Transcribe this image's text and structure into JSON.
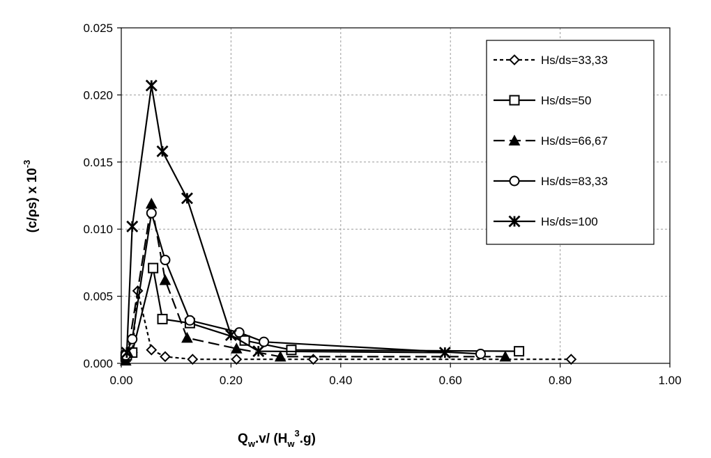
{
  "chart_data": {
    "type": "line",
    "title": "",
    "xlabel": {
      "main": "Q",
      "sub1": "w",
      "mid": ".v/ (H",
      "sub2": "w",
      "sup": "3",
      "tail": ".g)"
    },
    "ylabel": {
      "main": "(c/ρs) x 10",
      "sup": "-3"
    },
    "xlim": [
      0,
      1.0
    ],
    "ylim": [
      0,
      0.025
    ],
    "xticks": [
      0,
      0.2,
      0.4,
      0.6,
      0.8,
      1.0
    ],
    "xtick_labels": [
      "0.00",
      "0.20",
      "0.40",
      "0.60",
      "0.80",
      "1.00"
    ],
    "yticks": [
      0,
      0.005,
      0.01,
      0.015,
      0.02,
      0.025
    ],
    "ytick_labels": [
      "0.000",
      "0.005",
      "0.010",
      "0.015",
      "0.020",
      "0.025"
    ],
    "grid": true,
    "legend_position": "top-right",
    "series": [
      {
        "name": "Hs/ds=33,33",
        "marker": "diamond-open",
        "dash": "5,4",
        "points": [
          [
            0.008,
            0.0004
          ],
          [
            0.012,
            0.0006
          ],
          [
            0.02,
            0.0008
          ],
          [
            0.03,
            0.0054
          ],
          [
            0.055,
            0.001
          ],
          [
            0.08,
            0.0005
          ],
          [
            0.13,
            0.0003
          ],
          [
            0.21,
            0.0003
          ],
          [
            0.35,
            0.0003
          ],
          [
            0.82,
            0.0003
          ]
        ]
      },
      {
        "name": "Hs/ds=50",
        "marker": "square-open",
        "dash": "",
        "points": [
          [
            0.008,
            0.0005
          ],
          [
            0.01,
            0.0006
          ],
          [
            0.02,
            0.0008
          ],
          [
            0.058,
            0.0071
          ],
          [
            0.075,
            0.0033
          ],
          [
            0.125,
            0.003
          ],
          [
            0.225,
            0.0017
          ],
          [
            0.31,
            0.001
          ],
          [
            0.725,
            0.0009
          ]
        ]
      },
      {
        "name": "Hs/ds=66,67",
        "marker": "triangle-filled",
        "dash": "16,7",
        "points": [
          [
            0.008,
            0.0002
          ],
          [
            0.012,
            0.0008
          ],
          [
            0.055,
            0.0119
          ],
          [
            0.08,
            0.0062
          ],
          [
            0.12,
            0.0019
          ],
          [
            0.21,
            0.0011
          ],
          [
            0.29,
            0.0005
          ],
          [
            0.7,
            0.0005
          ]
        ]
      },
      {
        "name": "Hs/ds=83,33",
        "marker": "circle-open",
        "dash": "",
        "points": [
          [
            0.008,
            0.0006
          ],
          [
            0.02,
            0.0018
          ],
          [
            0.055,
            0.0112
          ],
          [
            0.08,
            0.0077
          ],
          [
            0.125,
            0.0032
          ],
          [
            0.215,
            0.0023
          ],
          [
            0.26,
            0.0016
          ],
          [
            0.655,
            0.0007
          ]
        ]
      },
      {
        "name": "Hs/ds=100",
        "marker": "asterisk",
        "dash": "",
        "points": [
          [
            0.01,
            0.0008
          ],
          [
            0.02,
            0.0102
          ],
          [
            0.055,
            0.0207
          ],
          [
            0.075,
            0.0158
          ],
          [
            0.12,
            0.0123
          ],
          [
            0.2,
            0.0021
          ],
          [
            0.25,
            0.0009
          ],
          [
            0.59,
            0.0008
          ]
        ]
      }
    ]
  }
}
